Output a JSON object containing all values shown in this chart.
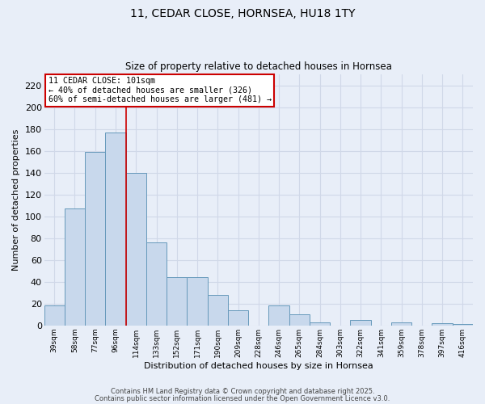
{
  "title1": "11, CEDAR CLOSE, HORNSEA, HU18 1TY",
  "title2": "Size of property relative to detached houses in Hornsea",
  "xlabel": "Distribution of detached houses by size in Hornsea",
  "ylabel": "Number of detached properties",
  "categories": [
    "39sqm",
    "58sqm",
    "77sqm",
    "96sqm",
    "114sqm",
    "133sqm",
    "152sqm",
    "171sqm",
    "190sqm",
    "209sqm",
    "228sqm",
    "246sqm",
    "265sqm",
    "284sqm",
    "303sqm",
    "322sqm",
    "341sqm",
    "359sqm",
    "378sqm",
    "397sqm",
    "416sqm"
  ],
  "values": [
    18,
    107,
    159,
    177,
    140,
    76,
    44,
    44,
    28,
    14,
    0,
    18,
    10,
    3,
    0,
    5,
    0,
    3,
    0,
    2,
    1
  ],
  "bar_color": "#c8d8ec",
  "bar_edge_color": "#6699bb",
  "vline_x": 3.5,
  "vline_color": "#cc0000",
  "annotation_text": "11 CEDAR CLOSE: 101sqm\n← 40% of detached houses are smaller (326)\n60% of semi-detached houses are larger (481) →",
  "annotation_box_color": "#ffffff",
  "annotation_box_edge": "#cc0000",
  "ylim": [
    0,
    230
  ],
  "yticks": [
    0,
    20,
    40,
    60,
    80,
    100,
    120,
    140,
    160,
    180,
    200,
    220
  ],
  "background_color": "#e8eef8",
  "plot_bg_color": "#e8eef8",
  "grid_color": "#d0d8e8",
  "footer1": "Contains HM Land Registry data © Crown copyright and database right 2025.",
  "footer2": "Contains public sector information licensed under the Open Government Licence v3.0."
}
